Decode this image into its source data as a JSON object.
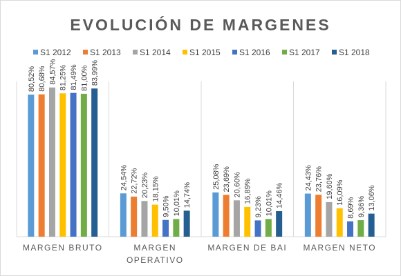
{
  "chart_data": {
    "type": "bar",
    "title": "EVOLUCIÓN DE MARGENES",
    "categories": [
      "MARGEN BRUTO",
      "MARGEN OPERATIVO",
      "MARGEN DE BAI",
      "MARGEN NETO"
    ],
    "series": [
      {
        "name": "S1 2012",
        "color": "#5B9BD5",
        "values": [
          80.52,
          24.54,
          25.08,
          24.43
        ],
        "labels": [
          "80,52%",
          "24,54%",
          "25,08%",
          "24,43%"
        ]
      },
      {
        "name": "S1 2013",
        "color": "#ED7D31",
        "values": [
          80.68,
          22.72,
          23.69,
          23.76
        ],
        "labels": [
          "80,68%",
          "22,72%",
          "23,69%",
          "23,76%"
        ]
      },
      {
        "name": "S1 2014",
        "color": "#A5A5A5",
        "values": [
          84.57,
          20.23,
          20.6,
          19.6
        ],
        "labels": [
          "84,57%",
          "20,23%",
          "20,60%",
          "19,60%"
        ]
      },
      {
        "name": "S1 2015",
        "color": "#FFC000",
        "values": [
          81.25,
          18.15,
          16.89,
          16.09
        ],
        "labels": [
          "81,25%",
          "18,15%",
          "16,89%",
          "16,09%"
        ]
      },
      {
        "name": "S1 2016",
        "color": "#4472C4",
        "values": [
          81.49,
          9.5,
          9.23,
          8.69
        ],
        "labels": [
          "81,49%",
          "9,50%",
          "9,23%",
          "8,69%"
        ]
      },
      {
        "name": "S1 2017",
        "color": "#70AD47",
        "values": [
          81.0,
          10.01,
          10.01,
          9.36
        ],
        "labels": [
          "81,00%",
          "10,01%",
          "10,01%",
          "9,36%"
        ]
      },
      {
        "name": "S1 2018",
        "color": "#255E91",
        "values": [
          83.99,
          14.74,
          14.46,
          13.06
        ],
        "labels": [
          "83,99%",
          "14,74%",
          "14,46%",
          "13,06%"
        ]
      }
    ],
    "ylim": [
      0,
      88
    ],
    "grid": false,
    "legend_position": "top"
  }
}
